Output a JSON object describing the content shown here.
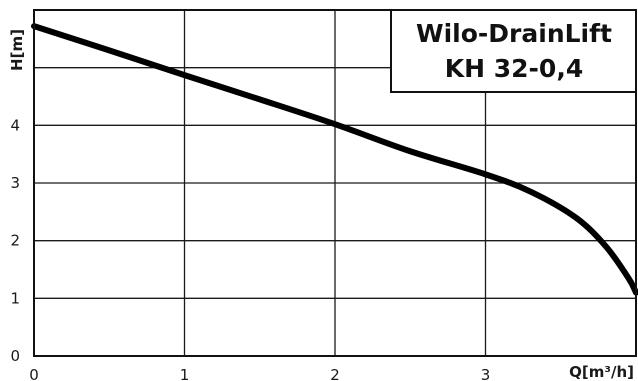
{
  "chart_data": {
    "type": "line",
    "title_lines": [
      "Wilo-DrainLift",
      "KH 32-0,4"
    ],
    "xlabel": "Q[m³/h]",
    "ylabel": "H[m]",
    "xlim": [
      0,
      4
    ],
    "ylim": [
      0,
      6
    ],
    "x_ticks": [
      "0",
      "1",
      "2",
      "3"
    ],
    "y_ticks": [
      "0",
      "1",
      "2",
      "3",
      "4"
    ],
    "grid": true,
    "series": [
      {
        "x": [
          0,
          0.5,
          1.0,
          1.5,
          2.0,
          2.5,
          3.0,
          3.3,
          3.6,
          3.8,
          3.95,
          4.0
        ],
        "y": [
          5.72,
          5.3,
          4.87,
          4.45,
          4.02,
          3.55,
          3.15,
          2.85,
          2.4,
          1.9,
          1.35,
          1.1
        ]
      }
    ],
    "colors": {
      "line": "#000000",
      "grid": "#1a1a1a",
      "background": "#ffffff"
    }
  }
}
